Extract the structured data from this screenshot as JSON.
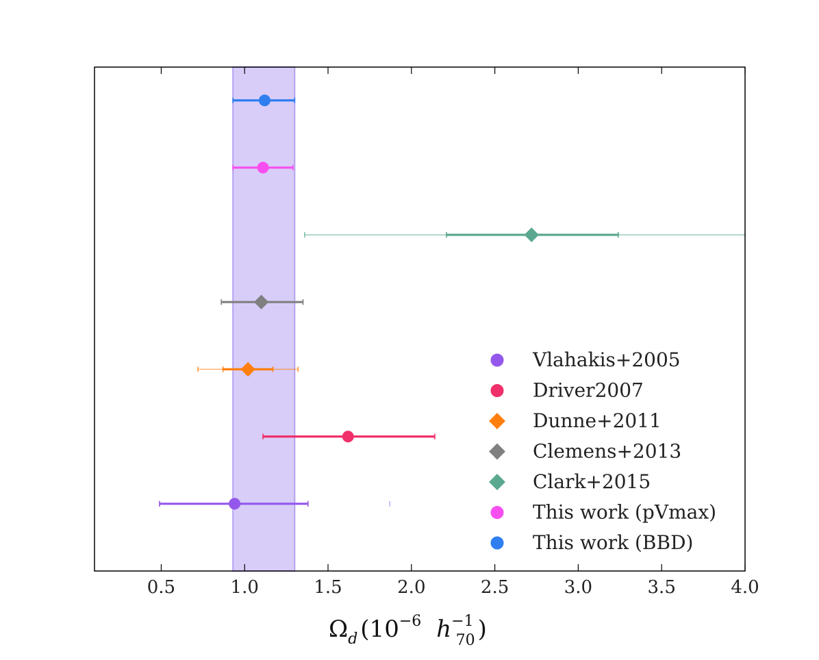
{
  "chart_data": {
    "type": "scatter",
    "title": "",
    "xlabel": {
      "omega": "Ω",
      "omega_sub": "d",
      "open": "(10",
      "exp": "−6",
      "h": "h",
      "h_sup": "−1",
      "h_sub": "70",
      "close": ")"
    },
    "ylabel": "",
    "xlim": [
      0.1,
      4.0
    ],
    "xticks": [
      "0.5",
      "1.0",
      "1.5",
      "2.0",
      "2.5",
      "3.0",
      "3.5",
      "4.0"
    ],
    "band": {
      "x0": 0.93,
      "x1": 1.3,
      "color": "#cbbcf6"
    },
    "series": [
      {
        "name": "Vlahakis+2005",
        "marker": "circle",
        "color": "#9457eb",
        "x": 0.94,
        "row": 1,
        "err_inner": [
          0.49,
          1.38
        ],
        "err_outer": [
          0.49,
          1.38
        ],
        "extra_tick": 1.87
      },
      {
        "name": "Driver2007",
        "marker": "circle",
        "color": "#f0306a",
        "x": 1.62,
        "row": 2,
        "err_inner": [
          1.11,
          2.14
        ],
        "err_outer": [
          1.11,
          2.14
        ]
      },
      {
        "name": "Dunne+2011",
        "marker": "diamond",
        "color": "#ff7f0e",
        "x": 1.02,
        "row": 3,
        "err_inner": [
          0.87,
          1.17
        ],
        "err_outer": [
          0.72,
          1.32
        ]
      },
      {
        "name": "Clemens+2013",
        "marker": "diamond",
        "color": "#808080",
        "x": 1.1,
        "row": 4,
        "err_inner": [
          0.86,
          1.35
        ],
        "err_outer": [
          0.86,
          1.35
        ]
      },
      {
        "name": "Clark+2015",
        "marker": "diamond",
        "color": "#5aa88f",
        "x": 2.72,
        "row": 5,
        "err_inner": [
          2.21,
          3.24
        ],
        "err_outer": [
          1.36,
          4.0
        ]
      },
      {
        "name": "This work (pVmax)",
        "marker": "circle",
        "color": "#f84ef0",
        "x": 1.11,
        "row": 6,
        "err_inner": [
          0.93,
          1.29
        ],
        "err_outer": [
          0.93,
          1.29
        ]
      },
      {
        "name": "This work (BBD)",
        "marker": "circle",
        "color": "#2f7ff0",
        "x": 1.12,
        "row": 7,
        "err_inner": [
          0.93,
          1.3
        ],
        "err_outer": [
          0.93,
          1.3
        ]
      }
    ],
    "legend_position": "bottom-right"
  }
}
